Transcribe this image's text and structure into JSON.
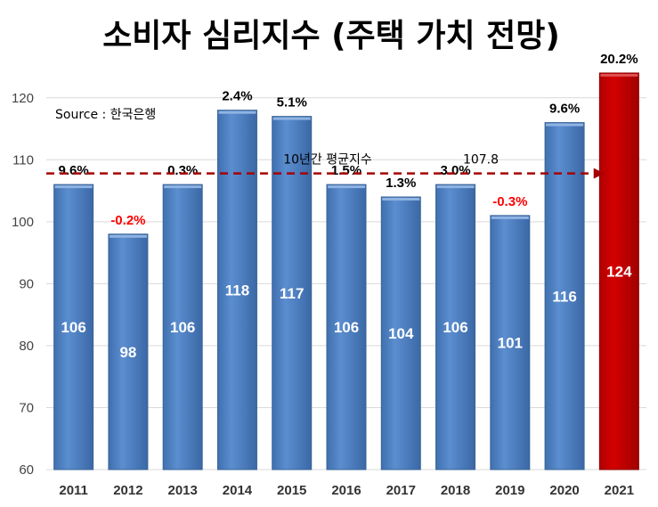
{
  "chart_data": {
    "type": "bar",
    "title": "소비자 심리지수 (주택 가치 전망)",
    "source": "Source : 한국은행",
    "categories": [
      "2011",
      "2012",
      "2013",
      "2014",
      "2015",
      "2016",
      "2017",
      "2018",
      "2019",
      "2020",
      "2021"
    ],
    "values": [
      106,
      98,
      106,
      118,
      117,
      106,
      104,
      106,
      101,
      116,
      124
    ],
    "value_labels": [
      "106",
      "98",
      "106",
      "118",
      "117",
      "106",
      "104",
      "106",
      "101",
      "116",
      "124"
    ],
    "growth_labels": [
      "9.6%",
      "-0.2%",
      "0.3%",
      "2.4%",
      "5.1%",
      "1.5%",
      "1.3%",
      "3.0%",
      "-0.3%",
      "9.6%",
      "20.2%"
    ],
    "ylim": [
      60,
      125
    ],
    "yticks": [
      60,
      70,
      80,
      90,
      100,
      110,
      120
    ],
    "average": {
      "label": "10년간 평균지수",
      "value_label": "107.8",
      "value": 107.8
    },
    "colors": {
      "bar": "#4f81bd",
      "bar_edge": "#3a6496",
      "highlight_bar": "#c00000",
      "highlight_edge": "#8b0000",
      "negative_label": "#ff0000",
      "positive_label": "#000000",
      "average_line": "#a50000"
    },
    "highlight_index": 10
  }
}
